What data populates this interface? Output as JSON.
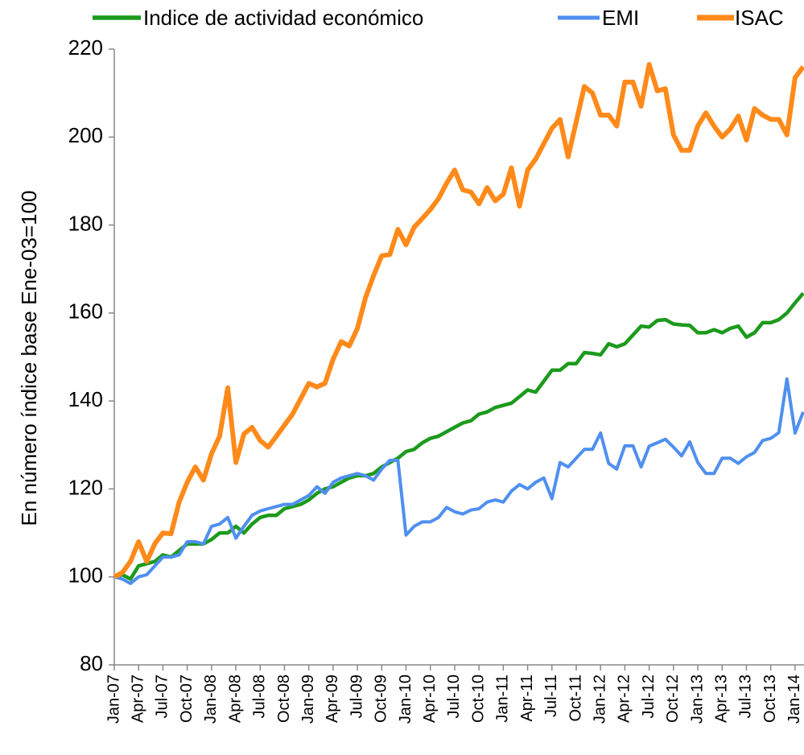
{
  "chart_data": {
    "type": "line",
    "y_axis_label": "En número índice base Ene-03=100",
    "categories": [
      "Jan-07",
      null,
      null,
      "Apr-07",
      null,
      null,
      "Jul-07",
      null,
      null,
      "Oct-07",
      null,
      null,
      "Jan-08",
      null,
      null,
      "Apr-08",
      null,
      null,
      "Jul-08",
      null,
      null,
      "Oct-08",
      null,
      null,
      "Jan-09",
      null,
      null,
      "Apr-09",
      null,
      null,
      "Jul-09",
      null,
      null,
      "Oct-09",
      null,
      null,
      "Jan-10",
      null,
      null,
      "Apr-10",
      null,
      null,
      "Jul-10",
      null,
      null,
      "Oct-10",
      null,
      null,
      "Jan-11",
      null,
      null,
      "Apr-11",
      null,
      null,
      "Jul-11",
      null,
      null,
      "Oct-11",
      null,
      null,
      "Jan-12",
      null,
      null,
      "Apr-12",
      null,
      null,
      "Jul-12",
      null,
      null,
      "Oct-12",
      null,
      null,
      "Jan-13",
      null,
      null,
      "Apr-13",
      null,
      null,
      "Jul-13",
      null,
      null,
      "Oct-13",
      null,
      null,
      "Jan-14",
      null
    ],
    "series": [
      {
        "name": "Indice de actividad económico",
        "color": "#1c9a1c",
        "values": [
          100,
          100.5,
          99.5,
          102.5,
          103,
          103.5,
          105,
          104.5,
          106,
          107.5,
          107.5,
          107.5,
          108.5,
          110,
          110,
          111.5,
          110,
          112,
          113.5,
          114,
          114,
          115.5,
          116,
          116.5,
          117.5,
          119,
          120,
          120.5,
          121.5,
          122.5,
          123,
          123,
          123.5,
          125,
          126,
          127,
          128.5,
          129,
          130.5,
          131.5,
          132,
          133,
          134,
          135,
          135.5,
          137,
          137.5,
          138.5,
          139,
          139.5,
          141,
          142.5,
          142,
          144.5,
          147,
          147,
          148.5,
          148.5,
          151,
          150.8,
          150.5,
          153,
          152.3,
          153,
          155,
          157,
          156.8,
          158.3,
          158.5,
          157.5,
          157.3,
          157.2,
          155.5,
          155.5,
          156.2,
          155.5,
          156.5,
          157,
          154.5,
          155.5,
          157.8,
          157.8,
          158.5,
          160,
          162.3,
          164.5
        ]
      },
      {
        "name": "EMI",
        "color": "#4f8ff0",
        "values": [
          100,
          99.5,
          98.5,
          100,
          100.5,
          102.5,
          104.5,
          104.5,
          105,
          108,
          108,
          107.5,
          111.5,
          112,
          113.5,
          108.8,
          111.5,
          114,
          115,
          115.5,
          116,
          116.5,
          116.5,
          117.5,
          118.5,
          120.5,
          119,
          121.5,
          122.5,
          123,
          123.5,
          123,
          122,
          124.5,
          126.5,
          126.5,
          109.5,
          111.5,
          112.5,
          112.5,
          113.5,
          115.8,
          114.8,
          114.3,
          115.2,
          115.5,
          117,
          117.5,
          117,
          119.5,
          121,
          120,
          121.5,
          122.5,
          117.8,
          126,
          125,
          127,
          129,
          129,
          132.7,
          125.8,
          124.5,
          129.8,
          129.8,
          125,
          129.7,
          130.5,
          131.3,
          129.5,
          127.5,
          130.7,
          126,
          123.5,
          123.5,
          127,
          127,
          125.8,
          127.3,
          128.3,
          131,
          131.5,
          132.8,
          145,
          132.7,
          137.5
        ]
      },
      {
        "name": "ISAC",
        "color": "#ff8a1a",
        "values": [
          100,
          101,
          103.5,
          108,
          103.5,
          107.5,
          110,
          109.8,
          117,
          121.5,
          125,
          122,
          128,
          132,
          143,
          126,
          132.5,
          134,
          131,
          129.5,
          132,
          134.5,
          137,
          140.5,
          144,
          143.2,
          144,
          149.5,
          153.5,
          152.5,
          156.5,
          163.5,
          168.5,
          173,
          173.3,
          179,
          175.5,
          179.5,
          181.5,
          183.5,
          186,
          189.5,
          192.5,
          188,
          187.5,
          184.8,
          188.5,
          185.5,
          187,
          193,
          184.3,
          192.5,
          195,
          198.5,
          202,
          204,
          195.5,
          203.5,
          211.5,
          210,
          205,
          205,
          202.5,
          212.5,
          212.5,
          207,
          216.5,
          210.5,
          211,
          200.5,
          197,
          197,
          202.5,
          205.5,
          202.5,
          200,
          201.8,
          204.8,
          199.3,
          206.5,
          205,
          204,
          204,
          200.5,
          213.5,
          216
        ]
      }
    ],
    "ylim": [
      80,
      220
    ],
    "yticks": [
      80,
      100,
      120,
      140,
      160,
      180,
      200,
      220
    ],
    "grid": false,
    "legend": "top"
  }
}
